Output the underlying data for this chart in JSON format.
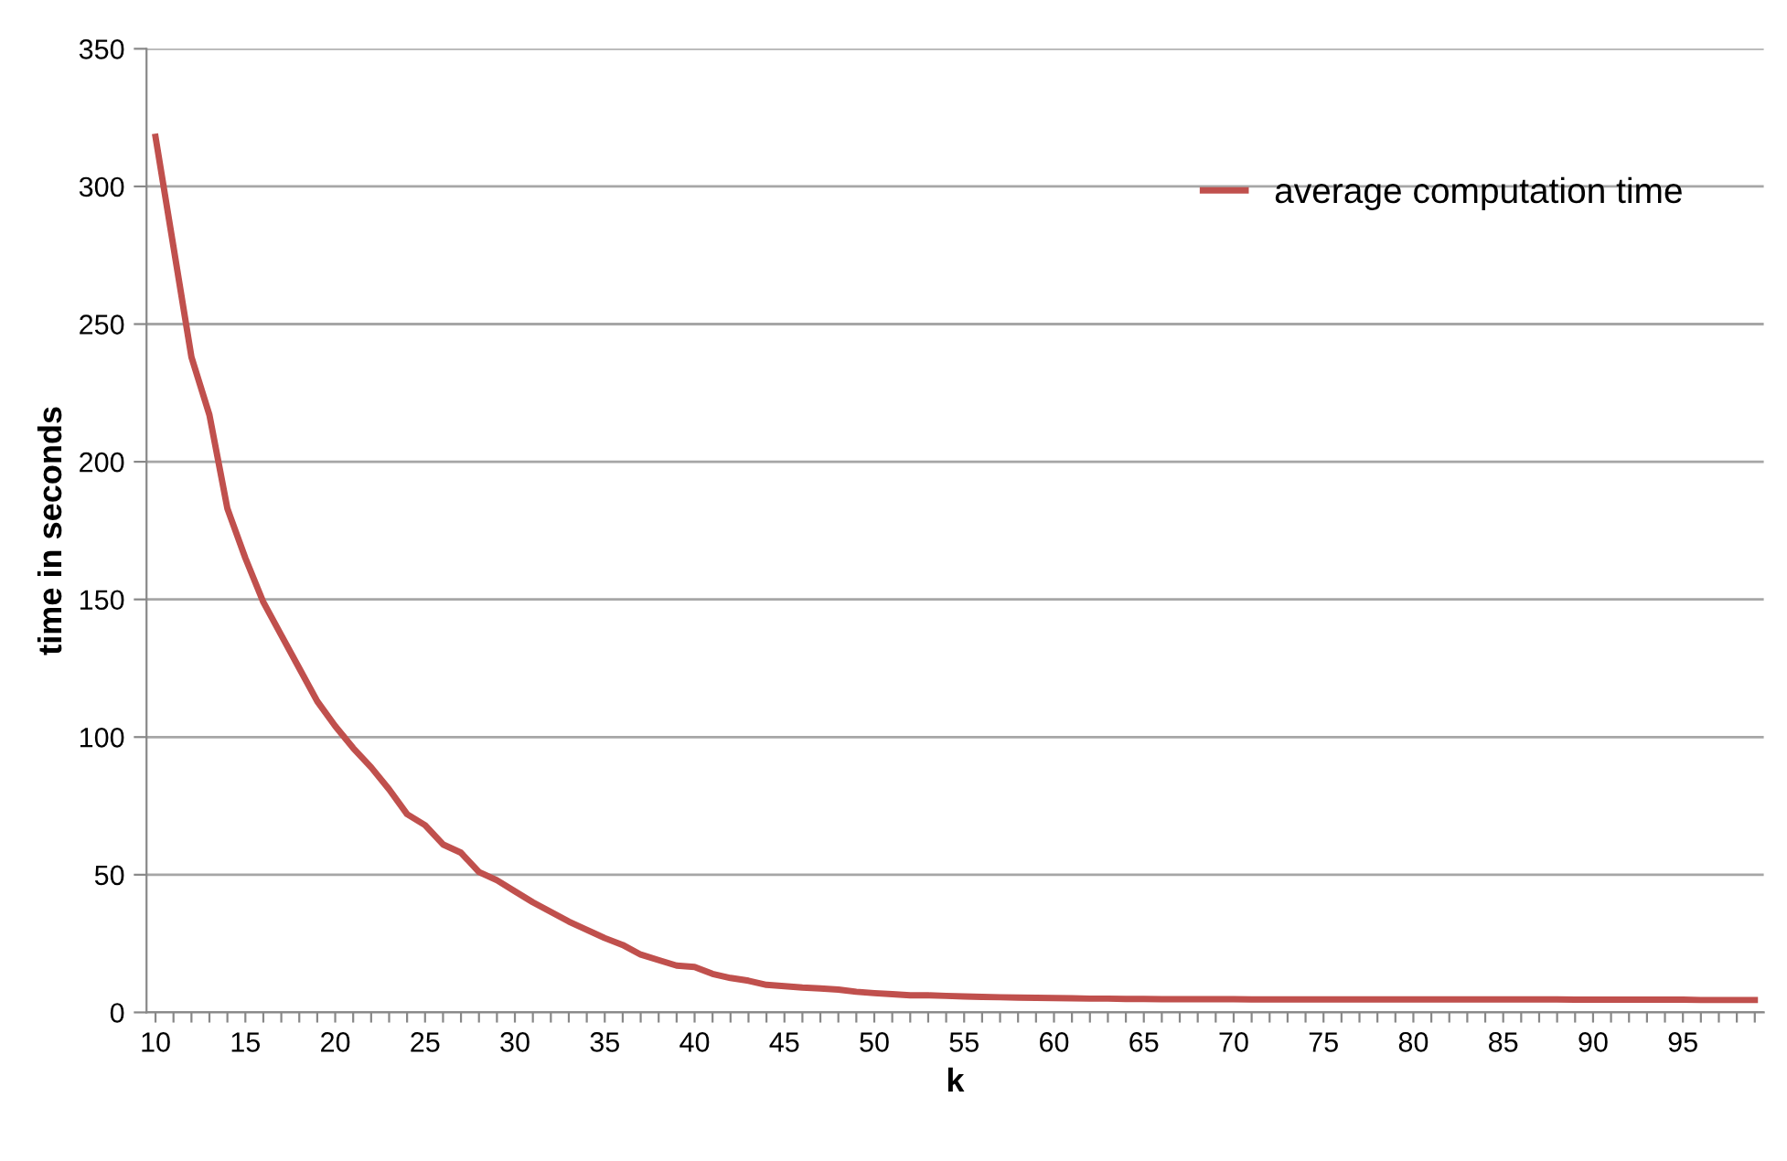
{
  "chart_data": {
    "type": "line",
    "xlabel": "k",
    "ylabel": "time in seconds",
    "categories": [
      "10",
      null,
      null,
      null,
      null,
      "15",
      null,
      null,
      null,
      null,
      "20",
      null,
      null,
      null,
      null,
      "25",
      null,
      null,
      null,
      null,
      "30",
      null,
      null,
      null,
      null,
      "35",
      null,
      null,
      null,
      null,
      "40",
      null,
      null,
      null,
      null,
      "45",
      null,
      null,
      null,
      null,
      "50",
      null,
      null,
      null,
      null,
      "55",
      null,
      null,
      null,
      null,
      "60",
      null,
      null,
      null,
      null,
      "65",
      null,
      null,
      null,
      null,
      "70",
      null,
      null,
      null,
      null,
      "75",
      null,
      null,
      null,
      null,
      "80",
      null,
      null,
      null,
      null,
      "85",
      null,
      null,
      null,
      null,
      "90",
      null,
      null,
      null,
      null,
      "95",
      null,
      null,
      null,
      null
    ],
    "series": [
      {
        "name": "average computation time",
        "color": "#c0504d",
        "values": [
          318,
          278,
          238,
          217,
          183,
          165,
          149,
          137,
          125,
          113,
          104,
          96,
          89,
          81,
          72,
          68,
          61,
          58,
          51,
          48,
          44,
          40,
          36.5,
          33,
          30,
          27,
          24.5,
          21,
          19,
          17,
          16.5,
          14,
          12.5,
          11.5,
          10,
          9.5,
          9,
          8.7,
          8.3,
          7.5,
          7,
          6.6,
          6.2,
          6.2,
          6,
          5.8,
          5.6,
          5.5,
          5.4,
          5.3,
          5.2,
          5.1,
          5,
          5,
          4.9,
          4.9,
          4.8,
          4.8,
          4.8,
          4.8,
          4.8,
          4.7,
          4.7,
          4.7,
          4.7,
          4.7,
          4.7,
          4.7,
          4.7,
          4.7,
          4.7,
          4.7,
          4.7,
          4.7,
          4.7,
          4.7,
          4.7,
          4.7,
          4.7,
          4.6,
          4.6,
          4.6,
          4.6,
          4.6,
          4.6,
          4.6,
          4.5,
          4.5,
          4.5,
          4.5
        ]
      }
    ],
    "ylim": [
      0,
      350
    ],
    "yticks": [
      0,
      50,
      100,
      150,
      200,
      250,
      300,
      350
    ],
    "grid": "y",
    "legend": "top right",
    "marker": "none",
    "line_style": "solid"
  }
}
